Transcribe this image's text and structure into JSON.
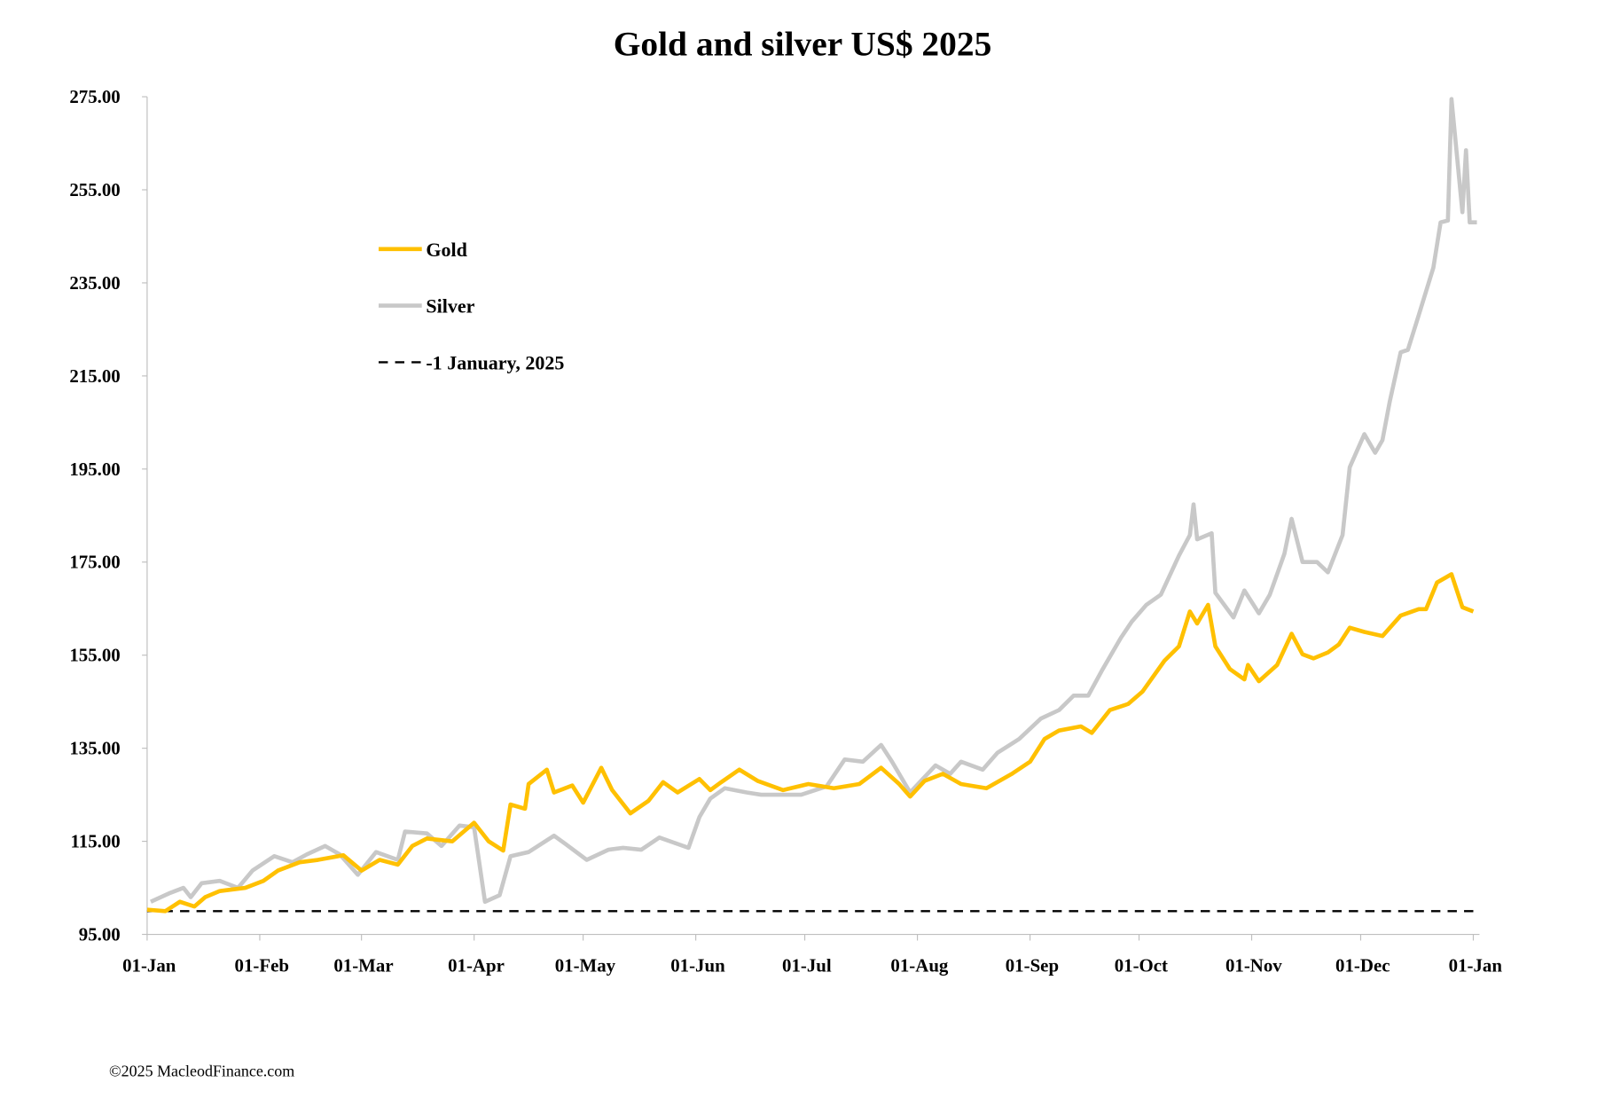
{
  "chart_data": {
    "type": "line",
    "title": "Gold and silver  US$ 2025",
    "xlabel": "",
    "ylabel": "",
    "x_unit": "day of year 2025 (0 = 01-Jan)",
    "xlim": [
      0,
      365
    ],
    "ylim": [
      95,
      275
    ],
    "yticks": [
      "95.00",
      "115.00",
      "135.00",
      "155.00",
      "175.00",
      "195.00",
      "215.00",
      "235.00",
      "255.00",
      "275.00"
    ],
    "xticks": [
      {
        "label": "01-Jan",
        "day": 0
      },
      {
        "label": "01-Feb",
        "day": 31
      },
      {
        "label": "01-Mar",
        "day": 59
      },
      {
        "label": "01-Apr",
        "day": 90
      },
      {
        "label": "01-May",
        "day": 120
      },
      {
        "label": "01-Jun",
        "day": 151
      },
      {
        "label": "01-Jul",
        "day": 181
      },
      {
        "label": "01-Aug",
        "day": 212
      },
      {
        "label": "01-Sep",
        "day": 243
      },
      {
        "label": "01-Oct",
        "day": 273
      },
      {
        "label": "01-Nov",
        "day": 304
      },
      {
        "label": "01-Dec",
        "day": 334
      },
      {
        "label": "01-Jan",
        "day": 365
      }
    ],
    "grid": false,
    "legend_position": "top-left",
    "series": [
      {
        "name": "Gold",
        "color": "#FFC000",
        "style": "solid",
        "x": [
          0,
          5,
          9,
          13,
          16,
          20,
          27,
          32,
          36,
          42,
          47,
          54,
          59,
          64,
          69,
          73,
          77,
          84,
          90,
          94,
          98,
          100,
          104,
          105,
          110,
          112,
          117,
          120,
          125,
          128,
          133,
          138,
          142,
          146,
          152,
          155,
          158,
          163,
          168,
          175,
          182,
          189,
          196,
          202,
          207,
          210,
          214,
          219,
          224,
          231,
          238,
          243,
          247,
          251,
          257,
          260,
          265,
          270,
          274,
          280,
          284,
          287,
          289,
          292,
          294,
          298,
          302,
          303,
          306,
          311,
          315,
          318,
          321,
          325,
          328,
          331,
          335,
          340,
          345,
          350,
          352,
          355,
          359,
          362,
          365
        ],
        "values": [
          100.3,
          100,
          102,
          101,
          103,
          104.3,
          105,
          106.5,
          108.7,
          110.5,
          111,
          112,
          108.7,
          111,
          110,
          114,
          115.6,
          115,
          119,
          115,
          113,
          122.9,
          122,
          127.3,
          130.4,
          125.5,
          127,
          123.3,
          130.8,
          126,
          121,
          123.7,
          127.7,
          125.5,
          128.4,
          126,
          127.7,
          130.4,
          128,
          126,
          127.3,
          126.4,
          127.3,
          130.8,
          127.3,
          124.6,
          128,
          129.5,
          127.3,
          126.4,
          129.5,
          132.1,
          137,
          138.8,
          139.7,
          138.3,
          143.2,
          144.5,
          147.2,
          153.8,
          156.9,
          164.4,
          161.8,
          165.8,
          156.9,
          152,
          149.8,
          152.9,
          149.4,
          152.9,
          159.6,
          155.2,
          154.3,
          155.6,
          157.3,
          160.9,
          160,
          159.1,
          163.5,
          164.9,
          164.9,
          170.6,
          172.4,
          165.3,
          164.4
        ]
      },
      {
        "name": "Silver",
        "color": "#C8C8C8",
        "style": "solid",
        "x": [
          1,
          6,
          10,
          12,
          15,
          20,
          25,
          29,
          35,
          40,
          44,
          49,
          53,
          58,
          63,
          69,
          71,
          77,
          81,
          86,
          90,
          93,
          97,
          100,
          105,
          112,
          115,
          121,
          127,
          131,
          136,
          141,
          149,
          152,
          155,
          159,
          165,
          169,
          175,
          180,
          187,
          192,
          197,
          202,
          205,
          210,
          217,
          221,
          224,
          230,
          234,
          240,
          246,
          251,
          255,
          259,
          263,
          268,
          271,
          275,
          279,
          284,
          287,
          288,
          289,
          293,
          294,
          299,
          302,
          306,
          309,
          313,
          315,
          318,
          322,
          325,
          329,
          331,
          335,
          338,
          340,
          342,
          345,
          347,
          350,
          354,
          356,
          358,
          359,
          362,
          363,
          364,
          366
        ],
        "values": [
          102,
          103.8,
          105,
          103,
          106,
          106.5,
          105,
          108.7,
          111.8,
          110.5,
          112.2,
          114,
          112.2,
          107.8,
          112.7,
          111,
          117.1,
          116.7,
          114,
          118.4,
          118,
          102,
          103.4,
          111.8,
          112.7,
          116.2,
          114.5,
          111,
          113.2,
          113.6,
          113.2,
          115.8,
          113.6,
          120.2,
          124.2,
          126.4,
          125.5,
          125,
          125,
          125,
          126.8,
          132.6,
          132.1,
          135.7,
          132.1,
          125.5,
          131.3,
          129.5,
          132.1,
          130.4,
          134,
          137,
          141.4,
          143.2,
          146.3,
          146.3,
          152,
          158.7,
          162.2,
          165.8,
          168,
          176.4,
          180.8,
          187.4,
          179.9,
          181.2,
          168.4,
          163.1,
          168.9,
          164,
          168,
          176.8,
          184.3,
          175,
          175,
          172.8,
          180.8,
          195.4,
          202.5,
          198.5,
          201.2,
          209.5,
          220.1,
          220.6,
          228.1,
          238.3,
          248,
          248.4,
          274.5,
          250.2,
          263.5,
          248,
          248
        ]
      },
      {
        "name": "1 January, 2025",
        "color": "#000000",
        "style": "dashed",
        "x": [
          0,
          365
        ],
        "values": [
          100,
          100
        ]
      }
    ],
    "legend": [
      {
        "label": "Gold",
        "color": "#FFC000",
        "style": "solid"
      },
      {
        "label": "Silver",
        "color": "#C8C8C8",
        "style": "solid"
      },
      {
        "label": "-1 January, 2025",
        "color": "#000000",
        "style": "dashed"
      }
    ]
  },
  "footer": {
    "credit": "©2025 MacleodFinance.com"
  }
}
